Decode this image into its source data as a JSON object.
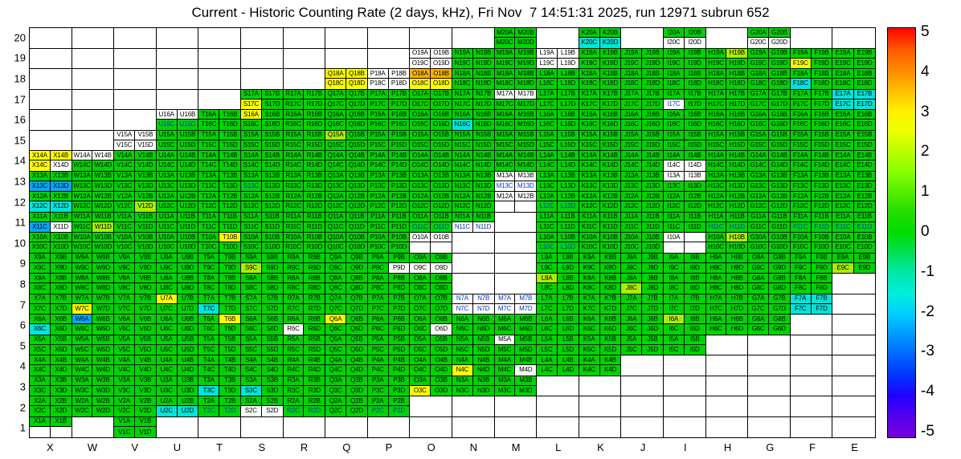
{
  "title": "Current - Historic Counting Rate (2 days, kHz), Fri Nov  7 14:51:31 2025, run 12971 subrun 652",
  "chart_data": {
    "type": "heatmap",
    "x_categories": [
      "X",
      "W",
      "V",
      "U",
      "T",
      "S",
      "R",
      "Q",
      "P",
      "O",
      "N",
      "M",
      "L",
      "K",
      "J",
      "I",
      "H",
      "G",
      "F",
      "E"
    ],
    "y_categories": [
      20,
      19,
      18,
      17,
      16,
      15,
      14,
      13,
      12,
      11,
      10,
      9,
      8,
      7,
      6,
      5,
      4,
      3,
      2,
      1
    ],
    "cell_suffixes": [
      "A",
      "B",
      "C",
      "D"
    ],
    "unit": "kHz",
    "value_range": [
      -5,
      5
    ],
    "colorbar_ticks": [
      "5",
      "4",
      "3",
      "2",
      "1",
      "0",
      "-1",
      "-2",
      "-3",
      "-4",
      "-5"
    ],
    "colorbar_gradient": [
      "#ff0000",
      "#ff5500",
      "#ff8800",
      "#ffbb00",
      "#ffee00",
      "#eeff00",
      "#bbff00",
      "#88ff00",
      "#55ee00",
      "#22dd00",
      "#00dd00",
      "#00e055",
      "#00e8aa",
      "#00eedd",
      "#00ccff",
      "#0099ff",
      "#0066ff",
      "#0033ff",
      "#2200ff",
      "#5500ee",
      "#7700dd"
    ],
    "color_codes": {
      "g": {
        "value": 0.3,
        "bg": "#00d400",
        "text": "#000000"
      },
      "n": {
        "value": 0.3,
        "bg": "#00d400",
        "text": "#0033cc"
      },
      "Y": {
        "value": 1.2,
        "bg": "#aaee00",
        "text": "#000000"
      },
      "y": {
        "value": 2.0,
        "bg": "#ffff00",
        "text": "#000000"
      },
      "o": {
        "value": 3.2,
        "bg": "#ffb400",
        "text": "#000000"
      },
      "c": {
        "value": -1.5,
        "bg": "#00e5db",
        "text": "#000000"
      },
      "b": {
        "value": -2.8,
        "bg": "#00aaff",
        "text": "#000000"
      },
      "w": {
        "value": null,
        "bg": "#ffffff",
        "text": "#000000"
      },
      "W": {
        "value": null,
        "bg": "#ffffff",
        "text": "#0033cc"
      },
      ".": {
        "value": null,
        "bg": "#ffffff",
        "text": null
      }
    },
    "blocks": {
      "M20": "gggg",
      "K20": "ggcc",
      "I20": "ggww",
      "G20": "ggww",
      "O19": "wwww",
      "N19": "gggg",
      "M19": "gggg",
      "L19": "wwww",
      "K19": "gggg",
      "J19": "gggg",
      "I19": "gggg",
      "H19": "gYgg",
      "G19": "gggg",
      "F19": "ggyg",
      "E19": "gggg",
      "Q18": "yyyy",
      "P18": "wwww",
      "O18": "ooyy",
      "N18": "gggg",
      "M18": "gggg",
      "L18": "gggg",
      "K18": "gggg",
      "J18": "gggg",
      "I18": "gggg",
      "H18": "gggg",
      "G18": "gggg",
      "F18": "ggcg",
      "E18": "gggg",
      "S17": "ggyg",
      "R17": "gggg",
      "Q17": "gggg",
      "P17": "gggg",
      "O17": "gggg",
      "N17": "gggg",
      "M17": "wwgg",
      "L17": "gggg",
      "K17": "gggg",
      "J17": "gggg",
      "I17": "ggWg",
      "H17": "gggg",
      "G17": "gggg",
      "F17": "gggg",
      "E17": "cccc",
      "U16": "wwnn",
      "T16": "gggg",
      "S16": "yggg",
      "R16": "gggg",
      "Q16": "gggg",
      "P16": "gggg",
      "O16": "gggg",
      "N16": "ggcg",
      "M16": "gggg",
      "L16": "gggg",
      "K16": "gggg",
      "J16": "gggg",
      "I16": "gggg",
      "H16": "gggg",
      "G16": "gggg",
      "F16": "gggg",
      "E16": "gggg",
      "V15": "wwww",
      "U15": "gggg",
      "T15": "gggg",
      "S15": "gggg",
      "R15": "gggg",
      "Q15": "Yggg",
      "P15": "gggg",
      "O15": "gggg",
      "N15": "gggg",
      "M15": "gggg",
      "L15": "gggg",
      "K15": "gggg",
      "J15": "gggg",
      "I15": "gggg",
      "H15": "gggg",
      "G15": "gggg",
      "F15": "gggg",
      "E15": "gggg",
      "X14": "yyyw",
      "W14": "wwgg",
      "V14": "gggg",
      "U14": "gggg",
      "T14": "gggg",
      "S14": "gggg",
      "R14": "gggg",
      "Q14": "gggg",
      "P14": "gggg",
      "O14": "gggg",
      "N14": "gggg",
      "M14": "gggg",
      "L14": "gggg",
      "K14": "gggg",
      "J14": "gggg",
      "I14": "ggww",
      "H14": "gggg",
      "G14": "gggg",
      "F14": "gggg",
      "E14": "gggg",
      "X13": "ggbb",
      "W13": "gggg",
      "V13": "gggg",
      "U13": "gggg",
      "T13": "gggg",
      "S13": "ggng",
      "R13": "gggg",
      "Q13": "gggg",
      "P13": "gggg",
      "O13": "gggg",
      "N13": "gggg",
      "M13": "wwWW",
      "L13": "gggg",
      "K13": "gggg",
      "J13": "gggg",
      "I13": "wwgg",
      "H13": "gggg",
      "G13": "gggg",
      "F13": "gggg",
      "E13": "gggg",
      "X12": "ggcc",
      "W12": "gggg",
      "V12": "gggY",
      "U12": "gggg",
      "T12": "gggg",
      "S12": "gggg",
      "R12": "gggg",
      "Q12": "gggg",
      "P12": "gggg",
      "O12": "gggg",
      "N12": "gggg",
      "M12": "ww..",
      "L12": "ggnn",
      "K12": "gggg",
      "J12": "gggg",
      "I12": "gggg",
      "H12": "gggg",
      "G12": "gggg",
      "F12": "gggg",
      "E12": "gggg",
      "X11": "ggbw",
      "W11": "gggY",
      "V11": "gggg",
      "U11": "gggg",
      "T11": "gggg",
      "S11": "gggg",
      "R11": "gggg",
      "Q11": "gggg",
      "P11": "gggg",
      "O11": "ggnn",
      "N11": "ggWW",
      "L11": "gggg",
      "K11": "gggg",
      "J11": "gggg",
      "I11": "gggg",
      "H11": "ggnn",
      "G11": "gggg",
      "F11": "ggnn",
      "E11": "ggnn",
      "X10": "gggg",
      "W10": "gggg",
      "V10": "gggg",
      "U10": "gggg",
      "T10": "gygg",
      "S10": "gggg",
      "R10": "gggg",
      "Q10": "gggg",
      "P10": "gggg",
      "O10": "ww..",
      "L10": "ggnn",
      "K10": "gggg",
      "J10": "gggg",
      "I10": "w...",
      "H10": "gYgg",
      "G10": "gggg",
      "F10": "gggg",
      "E10": "gggg",
      "X9": "gggg",
      "W9": "gggg",
      "V9": "gggg",
      "U9": "gggg",
      "T9": "gggg",
      "S9": "ggYg",
      "R9": "gggg",
      "Q9": "gggg",
      "P9": "gggw",
      "O9": "ggww",
      "L9": "gggg",
      "K9": "gggg",
      "J9": "gggg",
      "I9": "gggg",
      "H9": "gggg",
      "G9": "gggg",
      "F9": "gggg",
      "E9": "ggYg",
      "X8": "gggg",
      "W8": "gggg",
      "V8": "gggg",
      "U8": "gggg",
      "T8": "gggg",
      "S8": "gggg",
      "R8": "gggg",
      "Q8": "gggg",
      "P8": "gggg",
      "O8": "gggg",
      "L8": "Yggg",
      "K8": "gggg",
      "J8": "ggYg",
      "I8": "gggg",
      "H8": "gggg",
      "G8": "gggg",
      "F8": "gggg",
      "X7": "gggg",
      "W7": "ggyg",
      "V7": "gggg",
      "U7": "yggg",
      "T7": "ggcg",
      "S7": "gggg",
      "R7": "gggg",
      "Q7": "gggg",
      "P7": "gggg",
      "O7": "gggg",
      "N7": "WWWW",
      "M7": "WWWW",
      "L7": "gggg",
      "K7": "gggg",
      "J7": "gggg",
      "I7": "gggg",
      "H7": "gggg",
      "G7": "gggg",
      "F7": "cccc",
      "X6": "ggcg",
      "W6": "bggg",
      "V6": "gggg",
      "U6": "gggg",
      "T6": "gygg",
      "S6": "gggg",
      "R6": "ggwg",
      "Q6": "yggg",
      "P6": "gggg",
      "O6": "gggw",
      "N6": "gggg",
      "M6": "gggg",
      "L6": "gggg",
      "K6": "gggg",
      "J6": "gggg",
      "I6": "Yggg",
      "H6": "gggg",
      "G6": "gggg",
      "X5": "gggg",
      "W5": "gggg",
      "V5": "gggg",
      "U5": "gggg",
      "T5": "gggg",
      "S5": "gggg",
      "R5": "gggg",
      "Q5": "gggg",
      "P5": "gggg",
      "O5": "gggg",
      "N5": "gggg",
      "M5": "wggg",
      "L5": "gggg",
      "K5": "gggg",
      "J5": "gggg",
      "I5": "gggg",
      "X4": "gggg",
      "W4": "gggg",
      "V4": "gggg",
      "U4": "gggg",
      "T4": "gggg",
      "S4": "gggg",
      "R4": "gggg",
      "Q4": "gggg",
      "P4": "gggg",
      "O4": "gggg",
      "N4": "ggyg",
      "M4": "gggw",
      "L4": "gggg",
      "K4": "gggg",
      "X3": "gggg",
      "W3": "gggg",
      "V3": "gggg",
      "U3": "gggg",
      "T3": "ggcg",
      "S3": "ggcg",
      "R3": "gggg",
      "Q3": "gggg",
      "P3": "gggg",
      "O3": "ggyg",
      "N3": "gggg",
      "M3": "gggg",
      "X2": "gggg",
      "W2": "gggg",
      "V2": "gggg",
      "U2": "ggcc",
      "T2": "ggnn",
      "S2": "ggww",
      "R2": "ggnn",
      "Q2": "gggg",
      "P2": "ggnn",
      "X1": "gg..",
      "V1": "gggg"
    }
  }
}
